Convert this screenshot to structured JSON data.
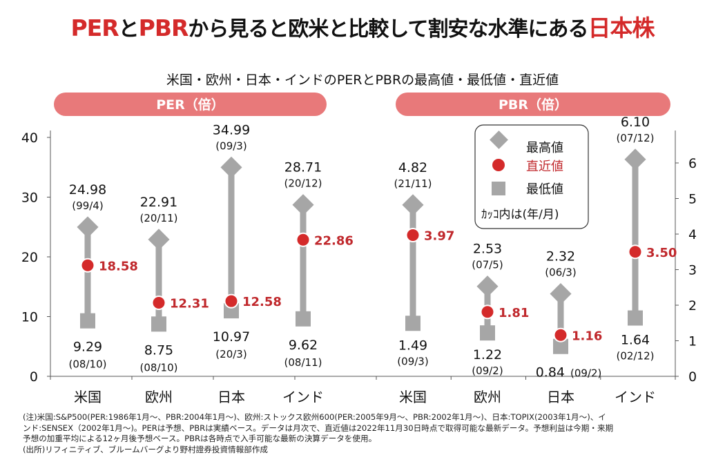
{
  "headline": {
    "part1": "PER",
    "part2": "と",
    "part3": "PBR",
    "part4": "から見ると欧米と比較して割安な水準にある",
    "part5": "日本株"
  },
  "subtitle": "米国・欧州・日本・インドのPERとPBRの最高値・最低値・直近値",
  "legend": {
    "high": "最高値",
    "recent": "直近値",
    "low": "最低値",
    "note": "ｶｯｺ内は(年/月)"
  },
  "colors": {
    "header_band": "#e8797a",
    "marker_gray": "#a6a6a6",
    "recent_red": "#d42a2a",
    "recent_label": "#c0282c"
  },
  "chart_data": [
    {
      "type": "range",
      "title": "PER（倍）",
      "ylim": [
        0,
        40
      ],
      "yticks": [
        "0",
        "10",
        "20",
        "30",
        "40"
      ],
      "axis_side": "left",
      "categories": [
        "米国",
        "欧州",
        "日本",
        "インド"
      ],
      "series": [
        {
          "name": "最高値",
          "values": [
            24.98,
            22.91,
            34.99,
            28.71
          ],
          "labels": [
            "24.98",
            "22.91",
            "34.99",
            "28.71"
          ],
          "dates": [
            "(99/4)",
            "(20/11)",
            "(09/3)",
            "(20/12)"
          ]
        },
        {
          "name": "直近値",
          "values": [
            18.58,
            12.31,
            12.58,
            22.86
          ],
          "labels": [
            "18.58",
            "12.31",
            "12.58",
            "22.86"
          ]
        },
        {
          "name": "最低値",
          "values": [
            9.29,
            8.75,
            10.97,
            9.62
          ],
          "labels": [
            "9.29",
            "8.75",
            "10.97",
            "9.62"
          ],
          "dates": [
            "(08/10)",
            "(08/10)",
            "(20/3)",
            "(08/11)"
          ]
        }
      ]
    },
    {
      "type": "range",
      "title": "PBR（倍）",
      "ylim": [
        0,
        6.6
      ],
      "yticks": [
        "0",
        "1",
        "2",
        "3",
        "4",
        "5",
        "6"
      ],
      "axis_side": "right",
      "categories": [
        "米国",
        "欧州",
        "日本",
        "インド"
      ],
      "series": [
        {
          "name": "最高値",
          "values": [
            4.82,
            2.53,
            2.32,
            6.1
          ],
          "labels": [
            "4.82",
            "2.53",
            "2.32",
            "6.10"
          ],
          "dates": [
            "(21/11)",
            "(07/5)",
            "(06/3)",
            "(07/12)"
          ]
        },
        {
          "name": "直近値",
          "values": [
            3.97,
            1.81,
            1.16,
            3.5
          ],
          "labels": [
            "3.97",
            "1.81",
            "1.16",
            "3.50"
          ]
        },
        {
          "name": "最低値",
          "values": [
            1.49,
            1.22,
            0.84,
            1.64
          ],
          "labels": [
            "1.49",
            "1.22",
            "0.84",
            "1.64"
          ],
          "dates": [
            "(09/3)",
            "(09/2)",
            "(09/2)",
            "(02/12)"
          ]
        }
      ]
    }
  ],
  "notes": [
    "(注)米国:S&P500(PER:1986年1月～、PBR:2004年1月～)、欧州:ストックス欧州600(PER:2005年9月～、PBR:2002年1月～)、日本:TOPIX(2003年1月～)、イ",
    "ンド:SENSEX（2002年1月～)。PERは予想、PBRは実績ベース。データは月次で、直近値は2022年11月30日時点で取得可能な最新データ。予想利益は今期・来期",
    "予想の加重平均による12ヶ月後予想ベース。PBRは各時点で入手可能な最新の決算データを使用。",
    "(出所)リフィニティブ、ブルームバーグより野村證券投資情報部作成"
  ]
}
